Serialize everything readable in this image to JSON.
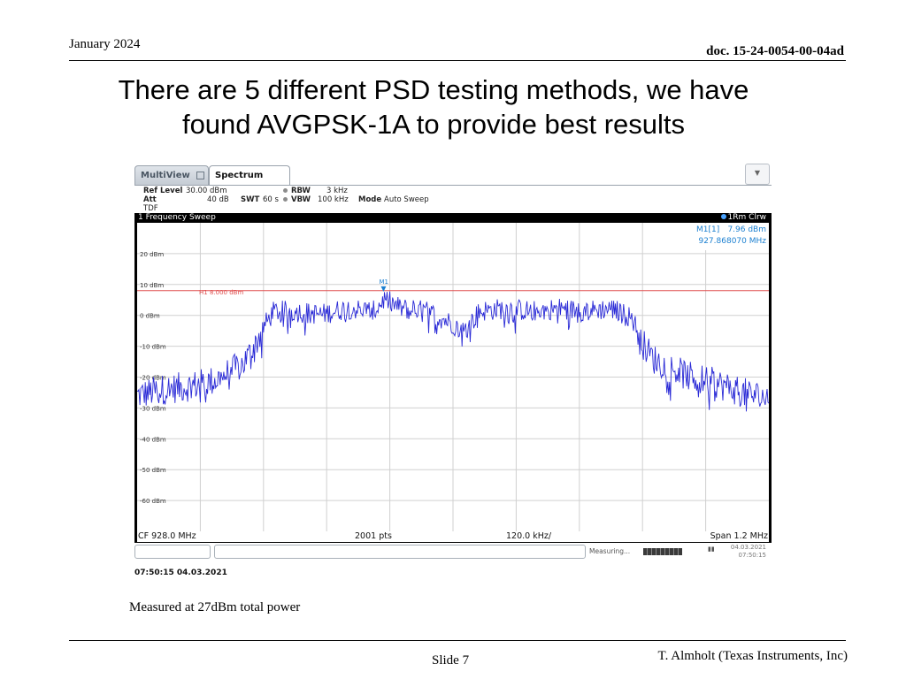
{
  "slide": {
    "date": "January 2024",
    "doc": "doc. 15-24-0054-00-04ad",
    "title_line1": "There are 5 different PSD testing methods, we have",
    "title_line2": "found AVGPSK-1A to provide best results",
    "caption": "Measured at 27dBm total power",
    "slide_number": "Slide 7",
    "author": "T. Almholt (Texas Instruments, Inc)"
  },
  "analyzer": {
    "tabs": [
      {
        "label": "MultiView"
      },
      {
        "label": "Spectrum"
      }
    ],
    "settings": {
      "ref_level_label": "Ref Level",
      "ref_level_value": "30.00 dBm",
      "att_label": "Att",
      "att_value": "40 dB",
      "swt_label": "SWT",
      "swt_value": "60 s",
      "tdf_label": "TDF",
      "rbw_label": "RBW",
      "rbw_value": "3 kHz",
      "vbw_label": "VBW",
      "vbw_value": "100 kHz",
      "mode_label": "Mode",
      "mode_value": "Auto Sweep"
    },
    "sweep_title": "1 Frequency Sweep",
    "trace_legend": "1Rm Clrw",
    "marker": {
      "name": "M1[1]",
      "level": "7.96 dBm",
      "freq": "927.868070 MHz",
      "plot_label": "M1"
    },
    "threshold_label": "H1 8.000 dBm",
    "bottom": {
      "cf": "CF 928.0 MHz",
      "pts": "2001 pts",
      "div": "120.0 kHz/",
      "span": "Span 1.2 MHz"
    },
    "status": {
      "measuring": "Measuring...",
      "date": "04.03.2021",
      "time": "07:50:15"
    },
    "timestamp": "07:50:15  04.03.2021",
    "colors": {
      "trace": "#2a2ad6",
      "threshold": "#e05050",
      "marker": "#1a7fd0",
      "grid": "#d0d0d0"
    }
  },
  "chart_data": {
    "type": "line",
    "title": "1 Frequency Sweep",
    "xlabel": "",
    "ylabel": "",
    "x_range_mhz": [
      927.4,
      928.6
    ],
    "ylim": [
      -70,
      30
    ],
    "y_ticks": [
      {
        "value": 20,
        "label": "20 dBm"
      },
      {
        "value": 10,
        "label": "10 dBm"
      },
      {
        "value": 0,
        "label": "0 dBm"
      },
      {
        "value": -10,
        "label": "-10 dBm"
      },
      {
        "value": -20,
        "label": "-20 dBm"
      },
      {
        "value": -30,
        "label": "-30 dBm"
      },
      {
        "value": -40,
        "label": "-40 dBm"
      },
      {
        "value": -50,
        "label": "-50 dBm"
      },
      {
        "value": -60,
        "label": "-60 dBm"
      }
    ],
    "threshold_dbm": 8.0,
    "marker": {
      "x_mhz": 927.868,
      "y_dbm": 7.96
    },
    "series": [
      {
        "name": "1Rm Clrw",
        "x": [
          927.4,
          927.45,
          927.5,
          927.55,
          927.6,
          927.62,
          927.64,
          927.66,
          927.7,
          927.75,
          927.8,
          927.85,
          927.87,
          927.9,
          927.95,
          928.0,
          928.02,
          928.05,
          928.1,
          928.15,
          928.2,
          928.25,
          928.3,
          928.34,
          928.36,
          928.38,
          928.4,
          928.45,
          928.5,
          928.55,
          928.6
        ],
        "y": [
          -25,
          -23,
          -22,
          -20,
          -15,
          -10,
          -3,
          2,
          2,
          1,
          3,
          2,
          6,
          3,
          2,
          -2,
          -5,
          2,
          3,
          2,
          3,
          2,
          3,
          0,
          -8,
          -13,
          -15,
          -19,
          -21,
          -24,
          -26
        ]
      }
    ]
  }
}
